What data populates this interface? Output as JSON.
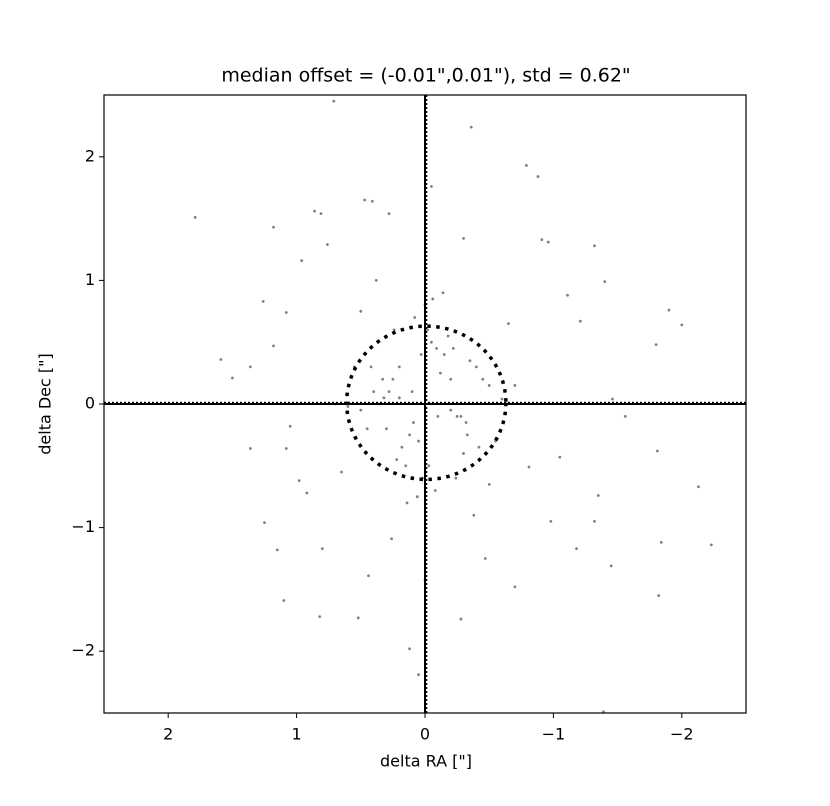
{
  "chart_data": {
    "type": "scatter",
    "title": "median offset = (-0.01\",0.01\"), std =  0.62\"",
    "x_label": "delta RA [\"]",
    "y_label": "delta Dec [\"]",
    "color": "#808080",
    "xlim": [
      2.5,
      -2.5
    ],
    "ylim": [
      -2.5,
      2.5
    ],
    "xticks": [
      2,
      1,
      0,
      {
        "value": -1,
        "label": "−1"
      },
      {
        "value": -2,
        "label": "−2"
      }
    ],
    "yticks": [
      {
        "value": -2,
        "label": "−2"
      },
      {
        "value": -1,
        "label": "−1"
      },
      0,
      1,
      2
    ],
    "crosshair": [
      0,
      0
    ],
    "median_offset": [
      -0.01,
      0.01
    ],
    "std": 0.62,
    "x": [
      0.71,
      -0.36,
      1.79,
      1.18,
      0.86,
      0.81,
      0.47,
      0.41,
      0.28,
      -0.05,
      -0.79,
      -0.88,
      -0.3,
      -0.91,
      -0.96,
      -1.32,
      -1.4,
      0.76,
      0.96,
      1.26,
      1.08,
      1.18,
      1.59,
      1.5,
      1.36,
      -1.8,
      -1.9,
      -2.0,
      -1.21,
      -1.11,
      -1.46,
      -1.56,
      1.36,
      1.25,
      1.15,
      1.1,
      0.82,
      0.52,
      0.8,
      0.44,
      0.12,
      0.05,
      -0.28,
      -0.7,
      -1.39,
      -1.82,
      -1.84,
      -2.23,
      -2.13,
      -1.81,
      -1.35,
      -1.32,
      -1.45,
      -1.18,
      1.05,
      1.08,
      0.98,
      0.92,
      -1.05,
      -0.98,
      -0.81,
      -0.47,
      0.26,
      0.0,
      0.1,
      -0.1,
      0.2,
      -0.2,
      0.3,
      -0.3,
      0.4,
      -0.4,
      0.05,
      -0.05,
      0.15,
      -0.15,
      0.25,
      -0.25,
      0.35,
      -0.35,
      0.5,
      -0.5,
      0.0,
      0.02,
      -0.02,
      0.12,
      -0.12,
      0.22,
      -0.22,
      0.32,
      -0.32,
      0.45,
      -0.45,
      0.08,
      -0.08,
      0.18,
      -0.18,
      0.28,
      -0.28,
      0.55,
      -0.55,
      0.6,
      -0.6,
      0.38,
      -0.38,
      0.03,
      -0.03,
      0.14,
      -0.14,
      0.24,
      -0.24,
      0.7,
      -0.7,
      0.65,
      -0.65,
      0.42,
      -0.42,
      0.09,
      -0.09,
      0.33,
      -0.33,
      0.5,
      -0.5,
      0.2,
      -0.2,
      0.06,
      -0.06
    ],
    "values": [
      2.45,
      2.24,
      1.51,
      1.43,
      1.56,
      1.54,
      1.65,
      1.64,
      1.54,
      1.76,
      1.93,
      1.84,
      1.34,
      1.33,
      1.31,
      1.28,
      0.99,
      1.29,
      1.16,
      0.83,
      0.74,
      0.47,
      0.36,
      0.21,
      0.3,
      0.48,
      0.76,
      0.64,
      0.67,
      0.88,
      0.04,
      -0.1,
      -0.36,
      -0.96,
      -1.18,
      -1.59,
      -1.72,
      -1.73,
      -1.17,
      -1.39,
      -1.98,
      -2.19,
      -1.74,
      -1.48,
      -2.49,
      -1.55,
      -1.12,
      -1.14,
      -0.67,
      -0.38,
      -0.74,
      -0.95,
      -1.31,
      -1.17,
      -0.18,
      -0.36,
      -0.62,
      -0.72,
      -0.43,
      -0.95,
      -0.51,
      -1.25,
      -1.09,
      -1.42,
      0.1,
      -0.1,
      0.3,
      0.2,
      -0.2,
      -0.4,
      0.1,
      0.3,
      -0.3,
      0.5,
      -0.5,
      0.4,
      0.2,
      -0.1,
      0.0,
      0.35,
      -0.05,
      0.15,
      0.8,
      -0.6,
      0.6,
      -0.25,
      0.25,
      -0.45,
      0.45,
      0.05,
      -0.15,
      -0.2,
      0.2,
      0.7,
      -0.7,
      -0.35,
      0.55,
      0.1,
      -0.1,
      0.3,
      -0.3,
      -0.02,
      0.04,
      1.0,
      -0.9,
      0.4,
      -0.5,
      -0.8,
      0.9,
      0.6,
      -0.6,
      0.0,
      0.15,
      -0.55,
      0.65,
      0.3,
      -0.35,
      -0.15,
      0.45,
      0.2,
      -0.25,
      0.75,
      -0.65,
      0.05,
      -0.05,
      -0.75,
      0.85
    ]
  }
}
